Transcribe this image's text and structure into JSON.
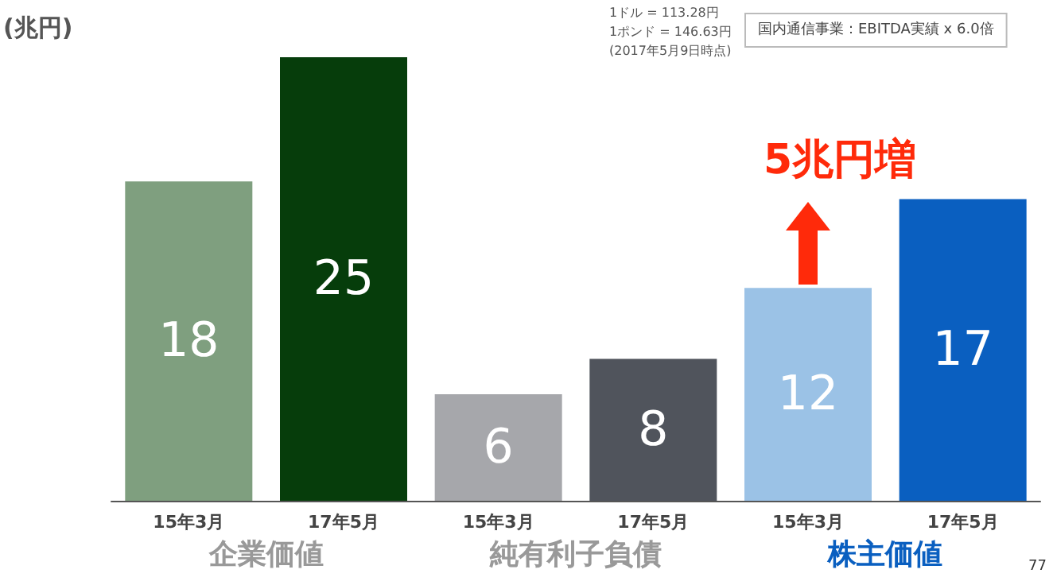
{
  "chart_data": {
    "type": "bar",
    "ylabel": "(兆円)",
    "categories": [
      "15年3月",
      "17年5月",
      "15年3月",
      "17年5月",
      "15年3月",
      "17年5月"
    ],
    "values": [
      18,
      25,
      6,
      8,
      12,
      17
    ],
    "colors": [
      "#7f9f7f",
      "#063d0b",
      "#a6a7ab",
      "#50545c",
      "#9bc2e6",
      "#0a5fc0"
    ],
    "data_labels": true,
    "grid": false,
    "tick_labels": "x",
    "annotations": [
      "1ドル = 113.28円",
      "1ポンド = 146.63円",
      "(2017年5月9日時点)",
      "国内通信事業：EBITDA実績 x 6.0倍",
      "企業価値",
      "純有利子負債",
      "株主価値",
      "5兆円増",
      "77"
    ]
  }
}
